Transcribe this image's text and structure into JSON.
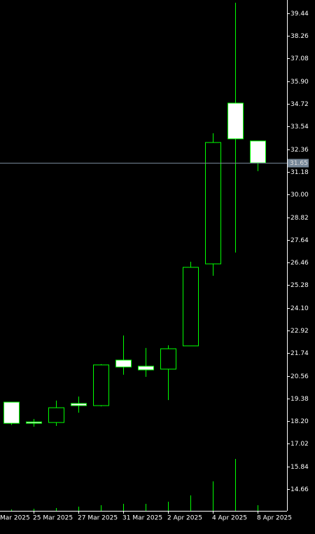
{
  "chart_data": {
    "type": "candlestick",
    "series": [
      {
        "color": "#00ff00",
        "bear_fill": "#ffffff",
        "bull_fill": "#000000",
        "open": [
          19.19,
          18.16,
          18.13,
          19.12,
          19.01,
          21.38,
          21.06,
          20.91,
          22.12,
          26.39,
          34.76,
          32.79
        ],
        "high": [
          19.19,
          18.31,
          19.27,
          19.48,
          21.17,
          22.66,
          22.01,
          22.15,
          26.5,
          33.19,
          39.99,
          32.79
        ],
        "low": [
          18.0,
          17.91,
          17.95,
          18.64,
          18.97,
          20.62,
          20.51,
          19.3,
          22.12,
          25.77,
          26.98,
          31.22
        ],
        "close": [
          18.09,
          18.09,
          18.9,
          19.01,
          21.13,
          21.02,
          20.87,
          21.97,
          26.21,
          32.71,
          32.9,
          31.65
        ],
        "volume": [
          2,
          3,
          4,
          6,
          8,
          10,
          10,
          13,
          22,
          42,
          74,
          8
        ]
      }
    ],
    "xticks": [
      {
        "value": -1,
        "label": "Mar 2025"
      },
      {
        "value": 1,
        "label": "25 Mar 2025"
      },
      {
        "value": 3,
        "label": "27 Mar 2025"
      },
      {
        "value": 5,
        "label": "31 Mar 2025"
      },
      {
        "value": 7,
        "label": "2 Apr 2025"
      },
      {
        "value": 9,
        "label": "4 Apr 2025"
      },
      {
        "value": 11,
        "label": "8 Apr 2025"
      }
    ],
    "ylim": [
      13.53,
      40.13
    ],
    "yticks": [
      39.44,
      38.26,
      37.08,
      {
        "value": 35.9,
        "label": "35.90"
      },
      34.72,
      33.54,
      32.36,
      31.18,
      {
        "value": 30,
        "label": "30.00"
      },
      28.82,
      27.64,
      26.46,
      25.28,
      {
        "value": 24.1,
        "label": "24.10"
      },
      22.92,
      21.74,
      20.56,
      19.38,
      {
        "value": 18.2,
        "label": "18.20"
      },
      17.02,
      15.84,
      14.66
    ],
    "current_price": 31.65,
    "current_price_color": "#778899",
    "grid": false
  }
}
